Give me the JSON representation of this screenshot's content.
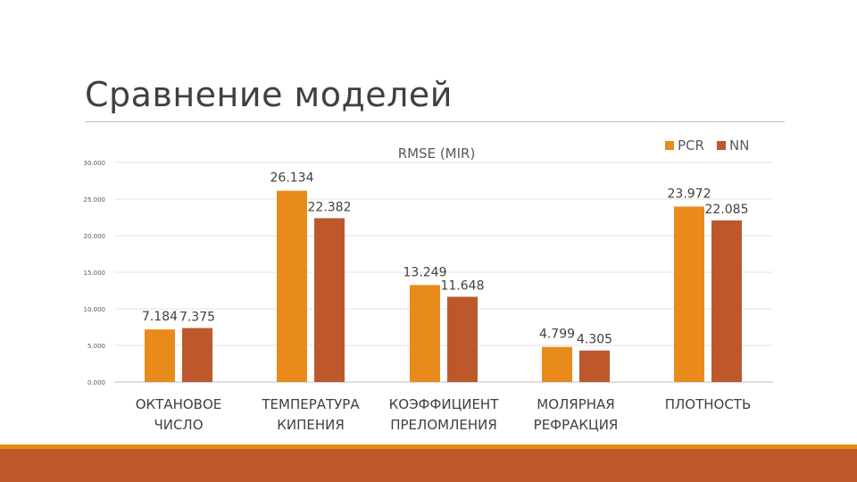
{
  "slide": {
    "title": "Сравнение моделей",
    "footer_colors": {
      "line": "#e0900e",
      "band": "#bd582c"
    }
  },
  "chart_data": {
    "type": "bar",
    "title": "RMSE (MIR)",
    "xlabel": "",
    "ylabel": "",
    "ylim": [
      0,
      30
    ],
    "yticks": [
      "0.000",
      "5.000",
      "10.000",
      "15.000",
      "20.000",
      "25.000",
      "30.000"
    ],
    "grid": true,
    "legend_position": "top-right",
    "categories": [
      [
        "ОКТАНОВОЕ",
        "ЧИСЛО"
      ],
      [
        "ТЕМПЕРАТУРА",
        "КИПЕНИЯ"
      ],
      [
        "КОЭФФИЦИЕНТ",
        "ПРЕЛОМЛЕНИЯ"
      ],
      [
        "МОЛЯРНАЯ",
        "РЕФРАКЦИЯ"
      ],
      [
        "ПЛОТНОСТЬ"
      ]
    ],
    "series": [
      {
        "name": "PCR",
        "color": "#e98b1b",
        "values": [
          7.184,
          26.134,
          13.249,
          4.799,
          23.972
        ],
        "labels": [
          "7.184",
          "26.134",
          "13.249",
          "4.799",
          "23.972"
        ]
      },
      {
        "name": "NN",
        "color": "#bd582c",
        "values": [
          7.375,
          22.382,
          11.648,
          4.305,
          22.085
        ],
        "labels": [
          "7.375",
          "22.382",
          "11.648",
          "4.305",
          "22.085"
        ]
      }
    ]
  }
}
